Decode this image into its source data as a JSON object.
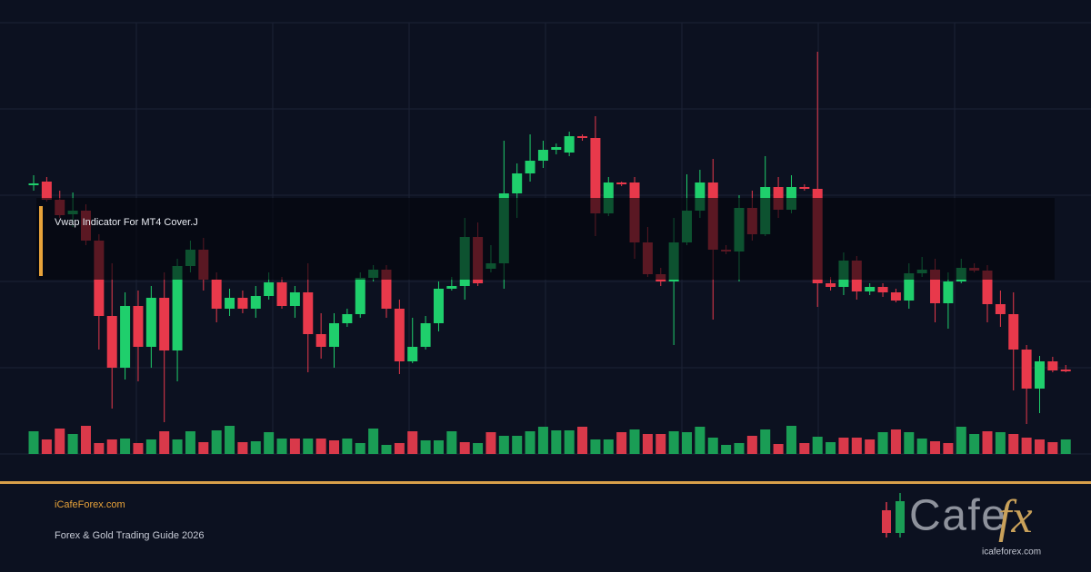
{
  "chart_data": {
    "type": "candlestick",
    "title": "Vwap Indicator For MT4 Cover.J",
    "ylim": [
      0,
      475
    ],
    "up_color": "#1fcf6c",
    "down_color": "#e8394b",
    "ohlc": [
      [
        297,
        307,
        290,
        298
      ],
      [
        300,
        305,
        278,
        280
      ],
      [
        280,
        290,
        260,
        263
      ],
      [
        264,
        288,
        250,
        268
      ],
      [
        268,
        275,
        230,
        235
      ],
      [
        235,
        242,
        115,
        152
      ],
      [
        152,
        210,
        50,
        95
      ],
      [
        95,
        178,
        82,
        163
      ],
      [
        163,
        180,
        80,
        118
      ],
      [
        118,
        185,
        95,
        172
      ],
      [
        172,
        200,
        35,
        114
      ],
      [
        114,
        215,
        80,
        207
      ],
      [
        207,
        235,
        200,
        225
      ],
      [
        225,
        238,
        180,
        192
      ],
      [
        192,
        200,
        145,
        160
      ],
      [
        160,
        182,
        152,
        172
      ],
      [
        172,
        180,
        155,
        160
      ],
      [
        160,
        185,
        150,
        174
      ],
      [
        174,
        200,
        170,
        189
      ],
      [
        189,
        195,
        160,
        163
      ],
      [
        163,
        185,
        150,
        178
      ],
      [
        178,
        210,
        90,
        132
      ],
      [
        132,
        155,
        105,
        118
      ],
      [
        118,
        155,
        95,
        144
      ],
      [
        144,
        160,
        140,
        154
      ],
      [
        154,
        200,
        150,
        194
      ],
      [
        194,
        208,
        190,
        203
      ],
      [
        203,
        208,
        150,
        160
      ],
      [
        160,
        170,
        88,
        102
      ],
      [
        102,
        150,
        100,
        118
      ],
      [
        118,
        152,
        115,
        144
      ],
      [
        144,
        190,
        135,
        182
      ],
      [
        182,
        195,
        180,
        185
      ],
      [
        185,
        260,
        170,
        239
      ],
      [
        239,
        255,
        185,
        188
      ],
      [
        204,
        230,
        200,
        210
      ],
      [
        210,
        345,
        182,
        287
      ],
      [
        287,
        320,
        260,
        309
      ],
      [
        309,
        352,
        300,
        323
      ],
      [
        323,
        345,
        315,
        335
      ],
      [
        335,
        342,
        330,
        338
      ],
      [
        332,
        355,
        328,
        350
      ],
      [
        350,
        352,
        345,
        348
      ],
      [
        348,
        372,
        240,
        265
      ],
      [
        265,
        305,
        262,
        299
      ],
      [
        299,
        300,
        295,
        297
      ],
      [
        299,
        305,
        215,
        233
      ],
      [
        233,
        250,
        195,
        198
      ],
      [
        198,
        205,
        185,
        190
      ],
      [
        190,
        260,
        120,
        233
      ],
      [
        233,
        308,
        230,
        268
      ],
      [
        268,
        313,
        260,
        299
      ],
      [
        299,
        325,
        148,
        225
      ],
      [
        225,
        230,
        220,
        223
      ],
      [
        223,
        285,
        190,
        271
      ],
      [
        271,
        290,
        235,
        242
      ],
      [
        242,
        328,
        240,
        294
      ],
      [
        294,
        305,
        260,
        269
      ],
      [
        269,
        307,
        265,
        294
      ],
      [
        294,
        297,
        290,
        292
      ],
      [
        292,
        443,
        162,
        188
      ],
      [
        188,
        195,
        180,
        184
      ],
      [
        184,
        222,
        175,
        213
      ],
      [
        213,
        218,
        170,
        179
      ],
      [
        179,
        188,
        175,
        184
      ],
      [
        184,
        188,
        173,
        178
      ],
      [
        178,
        182,
        167,
        169
      ],
      [
        169,
        210,
        160,
        199
      ],
      [
        199,
        217,
        195,
        203
      ],
      [
        203,
        215,
        145,
        166
      ],
      [
        166,
        200,
        138,
        190
      ],
      [
        190,
        215,
        188,
        205
      ],
      [
        205,
        210,
        200,
        202
      ],
      [
        202,
        208,
        145,
        165
      ],
      [
        165,
        180,
        140,
        154
      ],
      [
        154,
        178,
        70,
        115
      ],
      [
        115,
        120,
        33,
        72
      ],
      [
        72,
        108,
        45,
        102
      ],
      [
        102,
        107,
        90,
        92
      ],
      [
        93,
        98,
        90,
        91
      ]
    ],
    "volume": [
      25,
      16,
      28,
      22,
      31,
      12,
      16,
      17,
      12,
      16,
      25,
      16,
      25,
      13,
      26,
      31,
      13,
      14,
      24,
      17,
      17,
      17,
      17,
      15,
      17,
      12,
      28,
      10,
      12,
      25,
      15,
      15,
      25,
      13,
      12,
      24,
      20,
      20,
      25,
      30,
      26,
      26,
      30,
      16,
      16,
      24,
      27,
      22,
      22,
      25,
      24,
      30,
      18,
      10,
      12,
      20,
      27,
      11,
      31,
      12,
      19,
      13,
      18,
      18,
      16,
      24,
      27,
      24,
      17,
      14,
      12,
      30,
      22,
      25,
      24,
      22,
      18,
      16,
      13,
      16
    ],
    "volume_colors": {
      "up": "#1a9d55",
      "down": "#d9394a"
    },
    "volume_direction": [
      "up",
      "down",
      "down",
      "up",
      "down",
      "down",
      "down",
      "up",
      "down",
      "up",
      "down",
      "up",
      "up",
      "down",
      "up",
      "up",
      "down",
      "up",
      "up",
      "up",
      "down",
      "up",
      "down",
      "down",
      "up",
      "up",
      "up",
      "up",
      "down",
      "down",
      "up",
      "up",
      "up",
      "down",
      "up",
      "down",
      "up",
      "up",
      "up",
      "up",
      "up",
      "up",
      "down",
      "up",
      "up",
      "down",
      "up",
      "down",
      "down",
      "up",
      "up",
      "up",
      "up",
      "up",
      "up",
      "down",
      "up",
      "down",
      "up",
      "down",
      "up",
      "up",
      "down",
      "down",
      "down",
      "up",
      "down",
      "up",
      "up",
      "down",
      "down",
      "up",
      "up",
      "down",
      "up",
      "down",
      "down",
      "down",
      "down",
      "up"
    ]
  },
  "footer": {
    "site": "iCafeForex.com",
    "tagline": "Forex & Gold Trading Guide 2026"
  },
  "logo": {
    "word": "Cafe",
    "mark": "fx",
    "url": "icafeforex.com"
  }
}
